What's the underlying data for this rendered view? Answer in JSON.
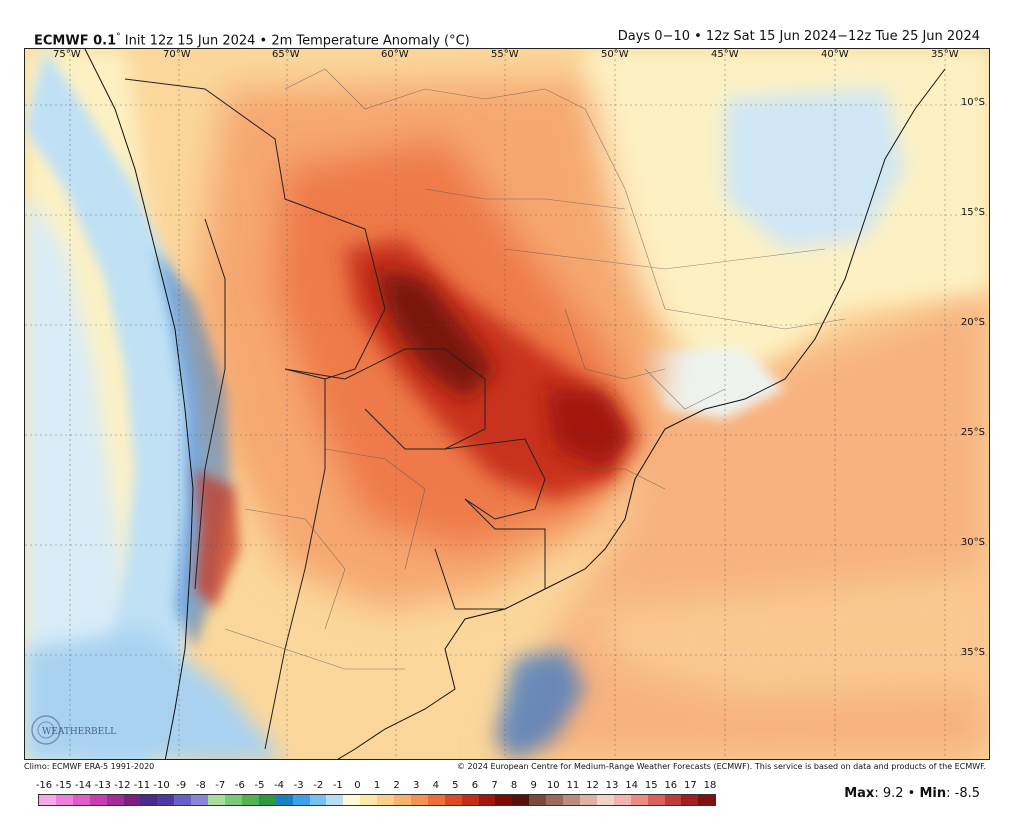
{
  "header": {
    "model": "ECMWF 0.1",
    "model_degree": "°",
    "run": "Init 12z 15 Jun 2024 • 2m Temperature Anomaly (°C)",
    "period": "Days 0−10 • 12z Sat 15 Jun 2024−12z Tue 25 Jun 2024"
  },
  "map": {
    "lon_labels": [
      "75°W",
      "70°W",
      "65°W",
      "60°W",
      "55°W",
      "50°W",
      "45°W",
      "40°W",
      "35°W"
    ],
    "lat_labels": [
      "10°S",
      "15°S",
      "20°S",
      "25°S",
      "30°S",
      "35°S"
    ],
    "colors": {
      "deep": "#7a1208",
      "strong": "#c9301a",
      "warm": "#ee7a4a",
      "mild": "#f6a76f",
      "light": "#fbd79b",
      "pale": "#fdf1c3",
      "cool": "#bfe0f5",
      "cold": "#3a79c8",
      "ocean": "#f7b27f"
    }
  },
  "footer": {
    "climo": "Climo: ECMWF ERA-5 1991-2020",
    "credit": "© 2024 European Centre for Medium-Range Weather Forecasts (ECMWF). This service is based on data and products of the ECMWF."
  },
  "scale": {
    "labels": [
      "-16",
      "-15",
      "-14",
      "-13",
      "-12",
      "-11",
      "-10",
      "-9",
      "-8",
      "-7",
      "-6",
      "-5",
      "-4",
      "-3",
      "-2",
      "-1",
      "0",
      "1",
      "2",
      "3",
      "4",
      "5",
      "6",
      "7",
      "8",
      "9",
      "10",
      "11",
      "12",
      "13",
      "14",
      "15",
      "16",
      "17",
      "18"
    ],
    "colors": [
      "#f7a8e6",
      "#ef7fd9",
      "#e15ccb",
      "#c93cb5",
      "#a52a9a",
      "#7c1f82",
      "#4c2a8c",
      "#4b3aa6",
      "#6a5fc8",
      "#8c86da",
      "#a9dd9b",
      "#7cc97a",
      "#4fb353",
      "#2e9a3f",
      "#1b7fc8",
      "#3fa0e8",
      "#76c1ef",
      "#b6def5",
      "#fff9d7",
      "#fee8a8",
      "#fcd08a",
      "#f9b26d",
      "#f59253",
      "#ee6f3c",
      "#df4a26",
      "#c62d17",
      "#a3180c",
      "#7a0e06",
      "#56100a",
      "#7a4a3e",
      "#9a6a5c",
      "#bb8d7c",
      "#dbb3a2",
      "#f0d2c6",
      "#f2b4ad",
      "#e98a84",
      "#d9605c",
      "#c13a3a",
      "#a11f22",
      "#801012"
    ]
  },
  "stats": {
    "max_label": "Max",
    "max_value": ": 9.2 • ",
    "min_label": "Min",
    "min_value": ": -8.5"
  },
  "logo": {
    "text": "WEATHERBELL"
  }
}
